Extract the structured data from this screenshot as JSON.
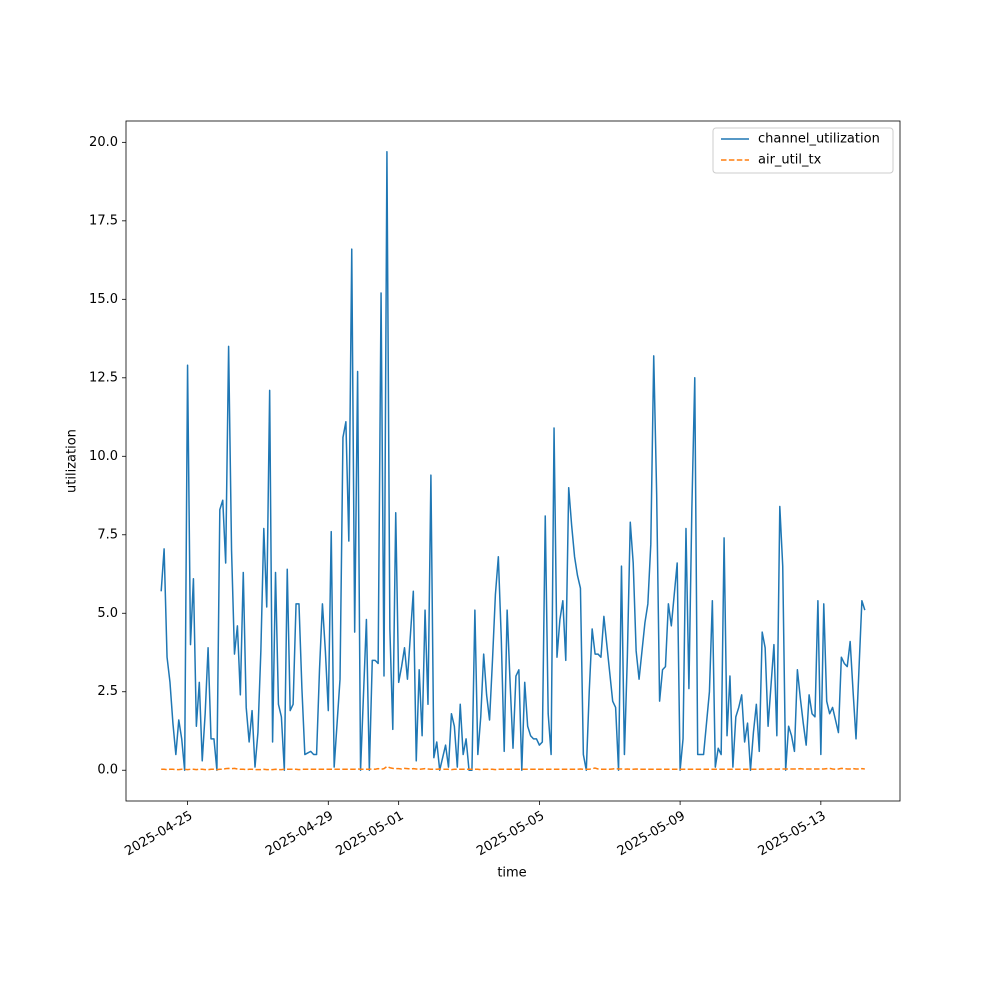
{
  "chart_data": {
    "type": "line",
    "xlabel": "time",
    "ylabel": "utilization",
    "x": [
      "2025-04-24T06:00",
      "2025-04-24T08:00",
      "2025-04-24T10:00",
      "2025-04-24T12:00",
      "2025-04-24T14:00",
      "2025-04-24T16:00",
      "2025-04-24T18:00",
      "2025-04-24T20:00",
      "2025-04-24T22:00",
      "2025-04-25T00:00",
      "2025-04-25T02:00",
      "2025-04-25T04:00",
      "2025-04-25T06:00",
      "2025-04-25T08:00",
      "2025-04-25T10:00",
      "2025-04-25T12:00",
      "2025-04-25T14:00",
      "2025-04-25T16:00",
      "2025-04-25T18:00",
      "2025-04-25T20:00",
      "2025-04-25T22:00",
      "2025-04-26T00:00",
      "2025-04-26T02:00",
      "2025-04-26T04:00",
      "2025-04-26T06:00",
      "2025-04-26T08:00",
      "2025-04-26T10:00",
      "2025-04-26T12:00",
      "2025-04-26T14:00",
      "2025-04-26T16:00",
      "2025-04-26T18:00",
      "2025-04-26T20:00",
      "2025-04-26T22:00",
      "2025-04-27T00:00",
      "2025-04-27T02:00",
      "2025-04-27T04:00",
      "2025-04-27T06:00",
      "2025-04-27T08:00",
      "2025-04-27T10:00",
      "2025-04-27T12:00",
      "2025-04-27T14:00",
      "2025-04-27T16:00",
      "2025-04-27T18:00",
      "2025-04-27T20:00",
      "2025-04-27T22:00",
      "2025-04-28T00:00",
      "2025-04-28T02:00",
      "2025-04-28T04:00",
      "2025-04-28T06:00",
      "2025-04-28T08:00",
      "2025-04-28T10:00",
      "2025-04-28T12:00",
      "2025-04-28T14:00",
      "2025-04-28T16:00",
      "2025-04-28T18:00",
      "2025-04-28T20:00",
      "2025-04-28T22:00",
      "2025-04-29T00:00",
      "2025-04-29T02:00",
      "2025-04-29T04:00",
      "2025-04-29T06:00",
      "2025-04-29T08:00",
      "2025-04-29T10:00",
      "2025-04-29T12:00",
      "2025-04-29T14:00",
      "2025-04-29T16:00",
      "2025-04-29T18:00",
      "2025-04-29T20:00",
      "2025-04-29T22:00",
      "2025-04-30T00:00",
      "2025-04-30T02:00",
      "2025-04-30T04:00",
      "2025-04-30T06:00",
      "2025-04-30T08:00",
      "2025-04-30T10:00",
      "2025-04-30T12:00",
      "2025-04-30T14:00",
      "2025-04-30T16:00",
      "2025-04-30T18:00",
      "2025-04-30T20:00",
      "2025-04-30T22:00",
      "2025-05-01T00:00",
      "2025-05-01T02:00",
      "2025-05-01T04:00",
      "2025-05-01T06:00",
      "2025-05-01T08:00",
      "2025-05-01T10:00",
      "2025-05-01T12:00",
      "2025-05-01T14:00",
      "2025-05-01T16:00",
      "2025-05-01T18:00",
      "2025-05-01T20:00",
      "2025-05-01T22:00",
      "2025-05-02T00:00",
      "2025-05-02T02:00",
      "2025-05-02T04:00",
      "2025-05-02T06:00",
      "2025-05-02T08:00",
      "2025-05-02T10:00",
      "2025-05-02T12:00",
      "2025-05-02T14:00",
      "2025-05-02T16:00",
      "2025-05-02T18:00",
      "2025-05-02T20:00",
      "2025-05-02T22:00",
      "2025-05-03T00:00",
      "2025-05-03T02:00",
      "2025-05-03T04:00",
      "2025-05-03T06:00",
      "2025-05-03T08:00",
      "2025-05-03T10:00",
      "2025-05-03T12:00",
      "2025-05-03T14:00",
      "2025-05-03T16:00",
      "2025-05-03T18:00",
      "2025-05-03T20:00",
      "2025-05-03T22:00",
      "2025-05-04T00:00",
      "2025-05-04T02:00",
      "2025-05-04T04:00",
      "2025-05-04T06:00",
      "2025-05-04T08:00",
      "2025-05-04T10:00",
      "2025-05-04T12:00",
      "2025-05-04T14:00",
      "2025-05-04T16:00",
      "2025-05-04T18:00",
      "2025-05-04T20:00",
      "2025-05-04T22:00",
      "2025-05-05T00:00",
      "2025-05-05T02:00",
      "2025-05-05T04:00",
      "2025-05-05T06:00",
      "2025-05-05T08:00",
      "2025-05-05T10:00",
      "2025-05-05T12:00",
      "2025-05-05T14:00",
      "2025-05-05T16:00",
      "2025-05-05T18:00",
      "2025-05-05T20:00",
      "2025-05-05T22:00",
      "2025-05-06T00:00",
      "2025-05-06T02:00",
      "2025-05-06T04:00",
      "2025-05-06T06:00",
      "2025-05-06T08:00",
      "2025-05-06T10:00",
      "2025-05-06T12:00",
      "2025-05-06T14:00",
      "2025-05-06T16:00",
      "2025-05-06T18:00",
      "2025-05-06T20:00",
      "2025-05-06T22:00",
      "2025-05-07T00:00",
      "2025-05-07T02:00",
      "2025-05-07T04:00",
      "2025-05-07T06:00",
      "2025-05-07T08:00",
      "2025-05-07T10:00",
      "2025-05-07T12:00",
      "2025-05-07T14:00",
      "2025-05-07T16:00",
      "2025-05-07T18:00",
      "2025-05-07T20:00",
      "2025-05-07T22:00",
      "2025-05-08T00:00",
      "2025-05-08T02:00",
      "2025-05-08T04:00",
      "2025-05-08T06:00",
      "2025-05-08T08:00",
      "2025-05-08T10:00",
      "2025-05-08T12:00",
      "2025-05-08T14:00",
      "2025-05-08T16:00",
      "2025-05-08T18:00",
      "2025-05-08T20:00",
      "2025-05-08T22:00",
      "2025-05-09T00:00",
      "2025-05-09T02:00",
      "2025-05-09T04:00",
      "2025-05-09T06:00",
      "2025-05-09T08:00",
      "2025-05-09T10:00",
      "2025-05-09T12:00",
      "2025-05-09T14:00",
      "2025-05-09T16:00",
      "2025-05-09T18:00",
      "2025-05-09T20:00",
      "2025-05-09T22:00",
      "2025-05-10T00:00",
      "2025-05-10T02:00",
      "2025-05-10T04:00",
      "2025-05-10T06:00",
      "2025-05-10T08:00",
      "2025-05-10T10:00",
      "2025-05-10T12:00",
      "2025-05-10T14:00",
      "2025-05-10T16:00",
      "2025-05-10T18:00",
      "2025-05-10T20:00",
      "2025-05-10T22:00",
      "2025-05-11T00:00",
      "2025-05-11T02:00",
      "2025-05-11T04:00",
      "2025-05-11T06:00",
      "2025-05-11T08:00",
      "2025-05-11T10:00",
      "2025-05-11T12:00",
      "2025-05-11T14:00",
      "2025-05-11T16:00",
      "2025-05-11T18:00",
      "2025-05-11T20:00",
      "2025-05-11T22:00",
      "2025-05-12T00:00",
      "2025-05-12T02:00",
      "2025-05-12T04:00",
      "2025-05-12T06:00",
      "2025-05-12T08:00",
      "2025-05-12T10:00",
      "2025-05-12T12:00",
      "2025-05-12T14:00",
      "2025-05-12T16:00",
      "2025-05-12T18:00",
      "2025-05-12T20:00",
      "2025-05-12T22:00",
      "2025-05-13T00:00",
      "2025-05-13T02:00",
      "2025-05-13T04:00",
      "2025-05-13T06:00",
      "2025-05-13T08:00",
      "2025-05-13T10:00",
      "2025-05-13T12:00",
      "2025-05-13T14:00",
      "2025-05-13T16:00",
      "2025-05-13T18:00",
      "2025-05-13T20:00",
      "2025-05-13T22:00",
      "2025-05-14T00:00",
      "2025-05-14T02:00",
      "2025-05-14T04:00",
      "2025-05-14T06:00"
    ],
    "series": [
      {
        "name": "channel_utilization",
        "color": "#1f77b4",
        "dash": "solid",
        "values": [
          5.7,
          7.05,
          3.6,
          2.8,
          1.5,
          0.5,
          1.6,
          1.0,
          0,
          12.9,
          4.0,
          6.1,
          1.4,
          2.8,
          0.3,
          1.8,
          3.9,
          1.0,
          1.0,
          0,
          8.3,
          8.6,
          6.6,
          13.5,
          7.0,
          3.7,
          4.6,
          2.4,
          6.3,
          2.0,
          0.9,
          1.9,
          0.1,
          1.2,
          3.8,
          7.7,
          5.2,
          12.1,
          0.9,
          6.3,
          2.1,
          1.7,
          0,
          6.4,
          1.9,
          2.1,
          5.3,
          5.3,
          2.6,
          0.5,
          0.55,
          0.6,
          0.5,
          0.5,
          3.2,
          5.3,
          3.8,
          1.9,
          7.6,
          0.1,
          1.5,
          2.9,
          10.6,
          11.1,
          7.3,
          16.6,
          4.4,
          12.7,
          0,
          2.4,
          4.8,
          0,
          3.5,
          3.5,
          3.4,
          15.2,
          3.0,
          19.7,
          4.5,
          1.3,
          8.2,
          2.8,
          3.3,
          3.9,
          2.9,
          4.3,
          5.7,
          0.3,
          3.2,
          1.1,
          5.1,
          2.1,
          9.4,
          0.4,
          0.9,
          0,
          0.4,
          0.8,
          0.1,
          1.8,
          1.4,
          0.1,
          2.1,
          0.5,
          1.0,
          0,
          0,
          5.1,
          0.5,
          1.7,
          3.7,
          2.4,
          1.6,
          3.5,
          5.6,
          6.8,
          4.2,
          0.6,
          5.1,
          2.8,
          0.7,
          3.0,
          3.2,
          0,
          2.8,
          1.4,
          1.1,
          1.0,
          1.0,
          0.8,
          0.9,
          8.1,
          1.8,
          0.5,
          10.9,
          3.6,
          4.8,
          5.4,
          3.5,
          9.0,
          7.8,
          6.8,
          6.2,
          5.8,
          0.5,
          0,
          2.5,
          4.5,
          3.7,
          3.7,
          3.6,
          4.9,
          4.0,
          3.1,
          2.2,
          2.0,
          0,
          6.5,
          0.5,
          3.6,
          7.9,
          6.6,
          3.8,
          2.9,
          3.8,
          4.7,
          5.3,
          7.2,
          13.2,
          8.8,
          2.2,
          3.2,
          3.3,
          5.3,
          4.6,
          5.6,
          6.6,
          0,
          1.0,
          7.7,
          2.6,
          8.3,
          12.5,
          0.5,
          0.5,
          0.5,
          1.5,
          2.5,
          5.4,
          0.1,
          0.7,
          0.5,
          7.4,
          1.1,
          3.0,
          0.1,
          1.7,
          2.0,
          2.4,
          0.9,
          1.5,
          0,
          1.2,
          2.1,
          0.6,
          4.4,
          3.9,
          1.4,
          2.7,
          4.0,
          1.1,
          8.4,
          6.5,
          0,
          1.4,
          1.1,
          0.6,
          3.2,
          2.3,
          1.5,
          0.8,
          2.4,
          1.8,
          1.7,
          5.4,
          0.5,
          5.3,
          2.2,
          1.8,
          2.0,
          1.6,
          1.2,
          3.6,
          3.4,
          3.3,
          4.1,
          2.5,
          1.0,
          3.2,
          5.4,
          5.1
        ]
      },
      {
        "name": "air_util_tx",
        "color": "#ff7f0e",
        "dash": "dashed",
        "values": [
          0.03,
          0.03,
          0.02,
          0.03,
          0.03,
          0.02,
          0.02,
          0.03,
          0.03,
          0.02,
          0.03,
          0.03,
          0.02,
          0.03,
          0.03,
          0.02,
          0.02,
          0.03,
          0.03,
          0.02,
          0.03,
          0.03,
          0.05,
          0.06,
          0.05,
          0.06,
          0.04,
          0.03,
          0.03,
          0.02,
          0.03,
          0.03,
          0.02,
          0.02,
          0.02,
          0.03,
          0.02,
          0.02,
          0.02,
          0.03,
          0.02,
          0.02,
          0.03,
          0.03,
          0.03,
          0.03,
          0.03,
          0.02,
          0.03,
          0.03,
          0.03,
          0.03,
          0.03,
          0.03,
          0.03,
          0.03,
          0.03,
          0.03,
          0.03,
          0.03,
          0.03,
          0.03,
          0.03,
          0.03,
          0.03,
          0.03,
          0.03,
          0.04,
          0.03,
          0.03,
          0.03,
          0.03,
          0.04,
          0.03,
          0.05,
          0.03,
          0.05,
          0.12,
          0.08,
          0.06,
          0.05,
          0.05,
          0.04,
          0.06,
          0.05,
          0.04,
          0.05,
          0.04,
          0.03,
          0.04,
          0.05,
          0.04,
          0.03,
          0.03,
          0.03,
          0.04,
          0.03,
          0.03,
          0.03,
          0.02,
          0.03,
          0.03,
          0.03,
          0.03,
          0.03,
          0.03,
          0.03,
          0.03,
          0.03,
          0.02,
          0.03,
          0.03,
          0.03,
          0.03,
          0.02,
          0.03,
          0.03,
          0.03,
          0.03,
          0.03,
          0.03,
          0.03,
          0.03,
          0.03,
          0.03,
          0.03,
          0.03,
          0.03,
          0.03,
          0.03,
          0.03,
          0.03,
          0.03,
          0.03,
          0.03,
          0.03,
          0.03,
          0.03,
          0.03,
          0.03,
          0.03,
          0.03,
          0.03,
          0.04,
          0.03,
          0.03,
          0.03,
          0.05,
          0.07,
          0.04,
          0.03,
          0.03,
          0.03,
          0.03,
          0.04,
          0.05,
          0.04,
          0.04,
          0.03,
          0.04,
          0.03,
          0.03,
          0.04,
          0.03,
          0.03,
          0.03,
          0.03,
          0.03,
          0.03,
          0.03,
          0.03,
          0.03,
          0.03,
          0.03,
          0.03,
          0.03,
          0.03,
          0.03,
          0.03,
          0.03,
          0.03,
          0.03,
          0.03,
          0.03,
          0.03,
          0.03,
          0.03,
          0.03,
          0.03,
          0.03,
          0.03,
          0.03,
          0.03,
          0.03,
          0.03,
          0.03,
          0.03,
          0.03,
          0.03,
          0.03,
          0.03,
          0.03,
          0.03,
          0.03,
          0.03,
          0.04,
          0.03,
          0.03,
          0.04,
          0.04,
          0.03,
          0.04,
          0.04,
          0.04,
          0.04,
          0.04,
          0.04,
          0.04,
          0.05,
          0.04,
          0.04,
          0.04,
          0.04,
          0.04,
          0.04,
          0.04,
          0.04,
          0.05,
          0.06,
          0.04,
          0.03,
          0.04,
          0.06,
          0.05,
          0.04,
          0.04,
          0.05,
          0.04,
          0.04,
          0.05,
          0.04
        ]
      }
    ],
    "xlim": [
      "2025-04-23T06:00",
      "2025-05-15T06:00"
    ],
    "xticks": [
      "2025-04-25",
      "2025-04-29",
      "2025-05-01",
      "2025-05-05",
      "2025-05-09",
      "2025-05-13"
    ],
    "ylim": [
      -0.98,
      20.68
    ],
    "yticks": [
      {
        "value": 0,
        "label": "0.0"
      },
      2.5,
      {
        "value": 5,
        "label": "5.0"
      },
      7.5,
      {
        "value": 10,
        "label": "10.0"
      },
      12.5,
      {
        "value": 15,
        "label": "15.0"
      },
      17.5,
      {
        "value": 20,
        "label": "20.0"
      }
    ],
    "legend": "upper right",
    "grid": false
  }
}
